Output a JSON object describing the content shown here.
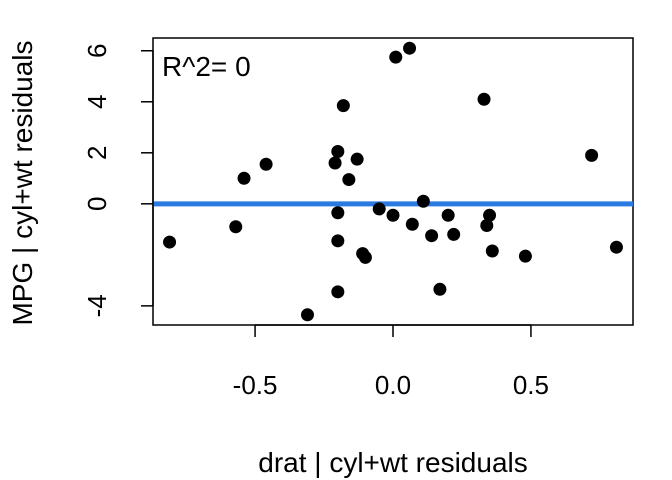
{
  "chart_data": {
    "type": "scatter",
    "xlabel": "drat | cyl+wt residuals",
    "ylabel": "MPG | cyl+wt residuals",
    "annotation": "R^2= 0",
    "xlim": [
      -0.87,
      0.87
    ],
    "ylim": [
      -4.75,
      6.5
    ],
    "x_ticks": [
      -0.5,
      0.0,
      0.5
    ],
    "x_tick_labels": [
      "-0.5",
      "0.0",
      "0.5"
    ],
    "y_ticks": [
      -4,
      0,
      2,
      4,
      6
    ],
    "y_tick_labels": [
      "-4",
      "0",
      "2",
      "4",
      "6"
    ],
    "grid": false,
    "point_color": "#000000",
    "fit_line": {
      "slope": 0,
      "intercept": 0,
      "color": "#2a7ae2"
    },
    "points": [
      {
        "x": -0.81,
        "y": -1.5
      },
      {
        "x": -0.57,
        "y": -0.9
      },
      {
        "x": -0.54,
        "y": 1.0
      },
      {
        "x": -0.46,
        "y": 1.55
      },
      {
        "x": -0.31,
        "y": -4.35
      },
      {
        "x": -0.21,
        "y": 1.6
      },
      {
        "x": -0.2,
        "y": 2.05
      },
      {
        "x": -0.2,
        "y": -0.35
      },
      {
        "x": -0.2,
        "y": -1.45
      },
      {
        "x": -0.2,
        "y": -3.45
      },
      {
        "x": -0.18,
        "y": 3.85
      },
      {
        "x": -0.16,
        "y": 0.95
      },
      {
        "x": -0.13,
        "y": 1.75
      },
      {
        "x": -0.11,
        "y": -1.95
      },
      {
        "x": -0.1,
        "y": -2.1
      },
      {
        "x": -0.05,
        "y": -0.2
      },
      {
        "x": 0.0,
        "y": -0.45
      },
      {
        "x": 0.01,
        "y": 5.75
      },
      {
        "x": 0.06,
        "y": 6.1
      },
      {
        "x": 0.07,
        "y": -0.8
      },
      {
        "x": 0.11,
        "y": 0.1
      },
      {
        "x": 0.14,
        "y": -1.25
      },
      {
        "x": 0.17,
        "y": -3.35
      },
      {
        "x": 0.2,
        "y": -0.45
      },
      {
        "x": 0.22,
        "y": -1.2
      },
      {
        "x": 0.33,
        "y": 4.1
      },
      {
        "x": 0.34,
        "y": -0.85
      },
      {
        "x": 0.35,
        "y": -0.45
      },
      {
        "x": 0.36,
        "y": -1.85
      },
      {
        "x": 0.48,
        "y": -2.05
      },
      {
        "x": 0.72,
        "y": 1.9
      },
      {
        "x": 0.81,
        "y": -1.7
      }
    ]
  }
}
